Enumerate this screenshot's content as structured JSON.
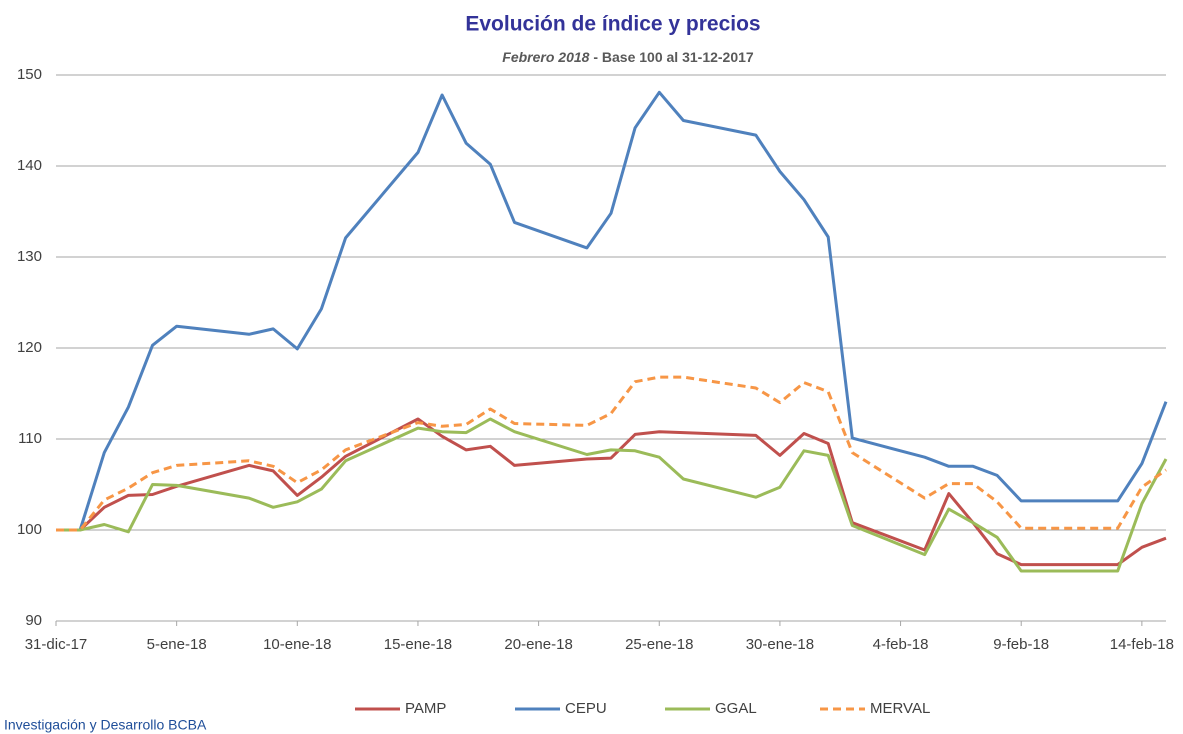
{
  "chart_data": {
    "type": "line",
    "title": "Evolución de índice y precios",
    "subtitle": {
      "date": "Febrero 2018",
      "rest": "- Base 100 al 31-12-2017"
    },
    "footer": "Investigación y Desarrollo BCBA",
    "x": [
      "2017-12-31",
      "2018-01-01",
      "2018-01-02",
      "2018-01-03",
      "2018-01-04",
      "2018-01-05",
      "2018-01-08",
      "2018-01-09",
      "2018-01-10",
      "2018-01-11",
      "2018-01-12",
      "2018-01-15",
      "2018-01-16",
      "2018-01-17",
      "2018-01-18",
      "2018-01-19",
      "2018-01-22",
      "2018-01-23",
      "2018-01-24",
      "2018-01-25",
      "2018-01-26",
      "2018-01-29",
      "2018-01-30",
      "2018-01-31",
      "2018-02-01",
      "2018-02-02",
      "2018-02-05",
      "2018-02-06",
      "2018-02-07",
      "2018-02-08",
      "2018-02-09",
      "2018-02-12",
      "2018-02-13",
      "2018-02-14",
      "2018-02-15"
    ],
    "series": [
      {
        "name": "PAMP",
        "color": "#c0504d",
        "dashed": false,
        "values": [
          100,
          100,
          102.5,
          103.8,
          103.9,
          104.8,
          107.1,
          106.5,
          103.8,
          105.8,
          108.1,
          112.2,
          110.3,
          108.8,
          109.2,
          107.1,
          107.8,
          107.9,
          110.5,
          110.8,
          110.7,
          110.4,
          108.2,
          110.6,
          109.5,
          100.8,
          97.8,
          104,
          100.8,
          97.4,
          96.2,
          96.2,
          96.2,
          98.1,
          99.1
        ]
      },
      {
        "name": "CEPU",
        "color": "#4f81bd",
        "dashed": false,
        "values": [
          100,
          100,
          108.5,
          113.5,
          120.3,
          122.4,
          121.5,
          122.1,
          119.9,
          124.3,
          132.1,
          141.5,
          147.8,
          142.5,
          140.2,
          133.8,
          131,
          134.8,
          144.2,
          148.1,
          145,
          143.4,
          139.4,
          136.3,
          132.2,
          110.1,
          108,
          107,
          107,
          106,
          103.2,
          103.2,
          103.2,
          107.3,
          114.1
        ]
      },
      {
        "name": "GGAL",
        "color": "#9bbb59",
        "dashed": false,
        "values": [
          100,
          100,
          100.6,
          99.8,
          105,
          104.9,
          103.5,
          102.5,
          103.1,
          104.5,
          107.6,
          111.2,
          110.8,
          110.7,
          112.2,
          110.8,
          108.3,
          108.8,
          108.7,
          108,
          105.6,
          103.6,
          104.7,
          108.7,
          108.2,
          100.5,
          97.3,
          102.3,
          100.8,
          99.2,
          95.5,
          95.5,
          95.5,
          102.9,
          107.8
        ]
      },
      {
        "name": "MERVAL",
        "color": "#f79646",
        "dashed": true,
        "values": [
          100,
          100,
          103.3,
          104.6,
          106.3,
          107.1,
          107.6,
          107,
          105.2,
          106.6,
          108.8,
          111.8,
          111.4,
          111.6,
          113.3,
          111.7,
          111.5,
          112.8,
          116.3,
          116.8,
          116.8,
          115.6,
          114,
          116.2,
          115.2,
          108.5,
          103.5,
          105.1,
          105.1,
          103.1,
          100.2,
          100.2,
          100.2,
          104.7,
          106.6
        ]
      }
    ],
    "xlim": [
      "2017-12-31",
      "2018-02-15"
    ],
    "xticks": [
      {
        "value": "2017-12-31",
        "label": "31-dic-17"
      },
      {
        "value": "2018-01-05",
        "label": "5-ene-18"
      },
      {
        "value": "2018-01-10",
        "label": "10-ene-18"
      },
      {
        "value": "2018-01-15",
        "label": "15-ene-18"
      },
      {
        "value": "2018-01-20",
        "label": "20-ene-18"
      },
      {
        "value": "2018-01-25",
        "label": "25-ene-18"
      },
      {
        "value": "2018-01-30",
        "label": "30-ene-18"
      },
      {
        "value": "2018-02-04",
        "label": "4-feb-18"
      },
      {
        "value": "2018-02-09",
        "label": "9-feb-18"
      },
      {
        "value": "2018-02-14",
        "label": "14-feb-18"
      }
    ],
    "ylim": [
      90,
      150
    ],
    "yticks": [
      90,
      100,
      110,
      120,
      130,
      140,
      150
    ],
    "grid": true,
    "legend": "bottom"
  }
}
